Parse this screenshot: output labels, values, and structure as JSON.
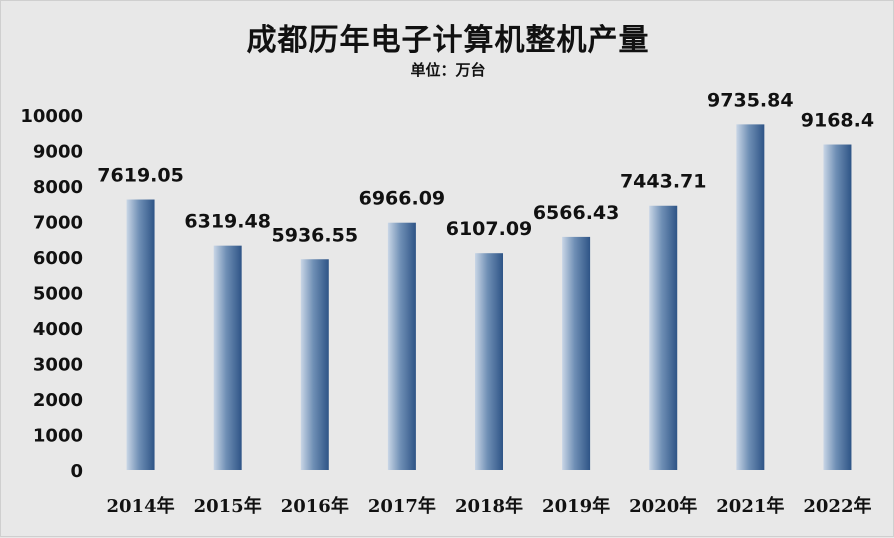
{
  "chart_data": {
    "type": "bar",
    "title": "成都历年电子计算机整机产量",
    "subtitle": "单位：万台",
    "categories": [
      "2014年",
      "2015年",
      "2016年",
      "2017年",
      "2018年",
      "2019年",
      "2020年",
      "2021年",
      "2022年"
    ],
    "values": [
      7619.05,
      6319.48,
      5936.55,
      6966.09,
      6107.09,
      6566.43,
      7443.71,
      9735.84,
      9168.4
    ],
    "data_labels": [
      "7619.05",
      "6319.48",
      "5936.55",
      "6966.09",
      "6107.09",
      "6566.43",
      "7443.71",
      "9735.84",
      "9168.4"
    ],
    "ylim": [
      0,
      10000
    ],
    "yticks": [
      0,
      1000,
      2000,
      3000,
      4000,
      5000,
      6000,
      7000,
      8000,
      9000,
      10000
    ],
    "xlabel": "",
    "ylabel": "",
    "grid": false,
    "legend": "none",
    "colors": {
      "background": "#e8e8e8",
      "bar_light": "#c9d6e6",
      "bar_mid": "#6f8fb5",
      "bar_dark": "#2e5486",
      "text": "#111111"
    }
  }
}
